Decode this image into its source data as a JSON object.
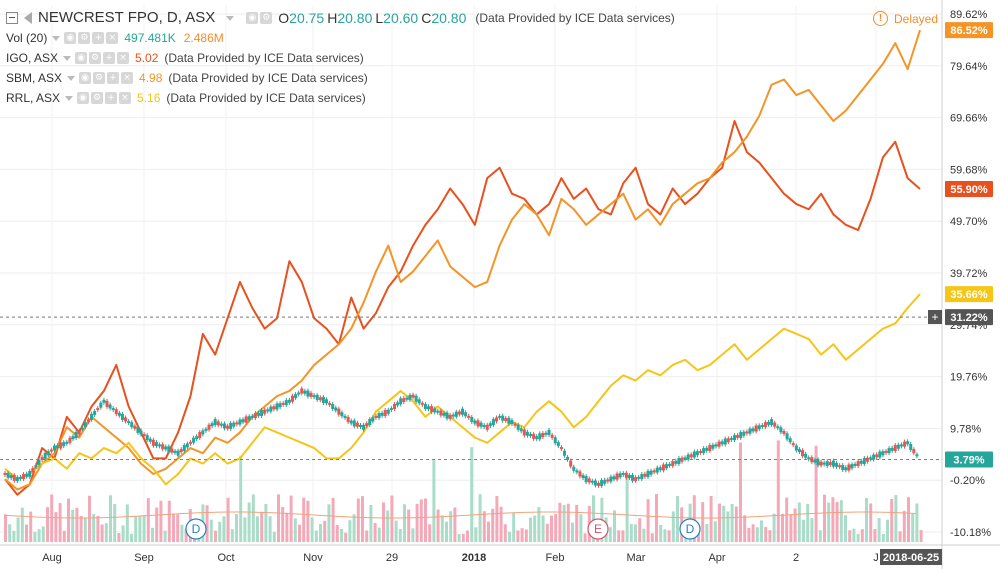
{
  "header": {
    "symbol": "NEWCREST FPO, D, ASX",
    "ohlc": [
      {
        "label": "O",
        "value": "20.75"
      },
      {
        "label": "H",
        "value": "20.80"
      },
      {
        "label": "L",
        "value": "20.60"
      },
      {
        "label": "C",
        "value": "20.80"
      }
    ],
    "provider": "(Data Provided by ICE Data services)",
    "delayed": "Delayed"
  },
  "volume_indicator": {
    "label": "Vol (20)",
    "value1": "497.481K",
    "value2": "2.486M",
    "color1": "#26a69a",
    "color2": "#f58c2c"
  },
  "comparisons": [
    {
      "name": "IGO, ASX",
      "value": "5.02",
      "color": "#e8501e",
      "provider": "(Data Provided by ICE Data services)"
    },
    {
      "name": "SBM, ASX",
      "value": "4.98",
      "color": "#f49426",
      "provider": "(Data Provided by ICE Data services)"
    },
    {
      "name": "RRL, ASX",
      "value": "5.16",
      "color": "#f5c518",
      "provider": "(Data Provided by ICE Data services)"
    }
  ],
  "axis": {
    "y_ticks": [
      "89.62%",
      "79.64%",
      "69.66%",
      "59.68%",
      "49.70%",
      "39.72%",
      "29.74%",
      "19.76%",
      "9.78%",
      "-0.20%",
      "-10.18%"
    ],
    "x_ticks": [
      "Aug",
      "Sep",
      "Oct",
      "Nov",
      "29",
      "2018",
      "Feb",
      "Mar",
      "Apr",
      "2",
      "J"
    ],
    "current_date": "2018-06-25"
  },
  "badges": [
    {
      "text": "86.52%",
      "color": "#f49426"
    },
    {
      "text": "55.90%",
      "color": "#e8501e"
    },
    {
      "text": "35.66%",
      "color": "#f5c518"
    },
    {
      "text": "31.22%",
      "color": "#555555"
    },
    {
      "text": "3.79%",
      "color": "#26a69a"
    }
  ],
  "markers": [
    {
      "letter": "D",
      "color": "#2a7fc4"
    },
    {
      "letter": "E",
      "color": "#d0556c"
    },
    {
      "letter": "D",
      "color": "#2a7fc4"
    }
  ],
  "chart_data": {
    "type": "line",
    "y_unit": "%",
    "ylim": [
      -10.18,
      89.62
    ],
    "grid": true,
    "series": [
      {
        "name": "IGO, ASX",
        "color": "#e8501e",
        "points": [
          [
            0,
            0
          ],
          [
            4,
            -3
          ],
          [
            8,
            -1
          ],
          [
            12,
            6
          ],
          [
            16,
            4
          ],
          [
            20,
            12
          ],
          [
            24,
            9
          ],
          [
            28,
            14
          ],
          [
            32,
            17
          ],
          [
            36,
            22
          ],
          [
            40,
            14
          ],
          [
            44,
            9
          ],
          [
            48,
            4
          ],
          [
            52,
            4
          ],
          [
            56,
            9
          ],
          [
            60,
            16
          ],
          [
            64,
            28
          ],
          [
            68,
            24
          ],
          [
            72,
            31
          ],
          [
            76,
            38
          ],
          [
            80,
            33
          ],
          [
            84,
            29
          ],
          [
            88,
            31
          ],
          [
            92,
            42
          ],
          [
            96,
            38
          ],
          [
            100,
            31
          ],
          [
            104,
            29
          ],
          [
            108,
            26
          ],
          [
            112,
            35
          ],
          [
            116,
            29
          ],
          [
            120,
            32
          ],
          [
            124,
            37
          ],
          [
            128,
            40
          ],
          [
            132,
            45
          ],
          [
            136,
            49
          ],
          [
            140,
            52
          ],
          [
            144,
            56
          ],
          [
            148,
            53
          ],
          [
            152,
            49
          ],
          [
            156,
            58
          ],
          [
            160,
            60
          ],
          [
            164,
            55
          ],
          [
            168,
            54
          ],
          [
            172,
            51
          ],
          [
            176,
            53
          ],
          [
            180,
            58
          ],
          [
            184,
            54
          ],
          [
            188,
            56
          ],
          [
            192,
            52
          ],
          [
            196,
            51
          ],
          [
            200,
            57
          ],
          [
            204,
            60
          ],
          [
            208,
            53
          ],
          [
            212,
            51
          ],
          [
            216,
            56
          ],
          [
            220,
            53
          ],
          [
            224,
            55
          ],
          [
            228,
            58
          ],
          [
            232,
            60
          ],
          [
            236,
            69
          ],
          [
            240,
            63
          ],
          [
            244,
            61
          ],
          [
            248,
            58
          ],
          [
            252,
            55
          ],
          [
            256,
            53
          ],
          [
            260,
            52
          ],
          [
            264,
            55
          ],
          [
            268,
            51
          ],
          [
            272,
            49
          ],
          [
            276,
            48
          ],
          [
            280,
            54
          ],
          [
            284,
            62
          ],
          [
            288,
            65
          ],
          [
            292,
            58
          ],
          [
            296,
            55.9
          ]
        ]
      },
      {
        "name": "SBM, ASX",
        "color": "#f49426",
        "points": [
          [
            0,
            0
          ],
          [
            4,
            -2
          ],
          [
            8,
            -1
          ],
          [
            12,
            3
          ],
          [
            16,
            5
          ],
          [
            20,
            10
          ],
          [
            24,
            8
          ],
          [
            28,
            12
          ],
          [
            32,
            10
          ],
          [
            36,
            8
          ],
          [
            40,
            6
          ],
          [
            44,
            3
          ],
          [
            48,
            1
          ],
          [
            52,
            2
          ],
          [
            56,
            4
          ],
          [
            60,
            6
          ],
          [
            64,
            5
          ],
          [
            68,
            8
          ],
          [
            72,
            7
          ],
          [
            76,
            9
          ],
          [
            80,
            12
          ],
          [
            84,
            14
          ],
          [
            88,
            16
          ],
          [
            92,
            17
          ],
          [
            96,
            19
          ],
          [
            100,
            22
          ],
          [
            104,
            24
          ],
          [
            108,
            26
          ],
          [
            112,
            29
          ],
          [
            116,
            34
          ],
          [
            120,
            40
          ],
          [
            124,
            45
          ],
          [
            128,
            38
          ],
          [
            132,
            40
          ],
          [
            136,
            43
          ],
          [
            140,
            46
          ],
          [
            144,
            41
          ],
          [
            148,
            39
          ],
          [
            152,
            37
          ],
          [
            156,
            38
          ],
          [
            160,
            45
          ],
          [
            164,
            50
          ],
          [
            168,
            53
          ],
          [
            172,
            51
          ],
          [
            176,
            47
          ],
          [
            180,
            54
          ],
          [
            184,
            52
          ],
          [
            188,
            49
          ],
          [
            192,
            51
          ],
          [
            196,
            53
          ],
          [
            200,
            55
          ],
          [
            204,
            50
          ],
          [
            208,
            52
          ],
          [
            212,
            49
          ],
          [
            216,
            53
          ],
          [
            220,
            55
          ],
          [
            224,
            57
          ],
          [
            228,
            58
          ],
          [
            232,
            61
          ],
          [
            236,
            63
          ],
          [
            240,
            66
          ],
          [
            244,
            70
          ],
          [
            248,
            76
          ],
          [
            252,
            77
          ],
          [
            256,
            74
          ],
          [
            260,
            75
          ],
          [
            264,
            72
          ],
          [
            268,
            69
          ],
          [
            272,
            71
          ],
          [
            276,
            74
          ],
          [
            280,
            77
          ],
          [
            284,
            80
          ],
          [
            288,
            84
          ],
          [
            292,
            79
          ],
          [
            296,
            86.52
          ]
        ]
      },
      {
        "name": "RRL, ASX",
        "color": "#f5c518",
        "points": [
          [
            0,
            2
          ],
          [
            4,
            0
          ],
          [
            8,
            1
          ],
          [
            12,
            3
          ],
          [
            16,
            4
          ],
          [
            20,
            2
          ],
          [
            24,
            5
          ],
          [
            28,
            4
          ],
          [
            32,
            6
          ],
          [
            36,
            5
          ],
          [
            40,
            7
          ],
          [
            44,
            4
          ],
          [
            48,
            2
          ],
          [
            52,
            -1
          ],
          [
            56,
            1
          ],
          [
            60,
            4
          ],
          [
            64,
            3
          ],
          [
            68,
            5
          ],
          [
            72,
            3
          ],
          [
            76,
            4
          ],
          [
            80,
            7
          ],
          [
            84,
            10
          ],
          [
            88,
            9
          ],
          [
            92,
            8
          ],
          [
            96,
            7
          ],
          [
            100,
            6
          ],
          [
            104,
            4
          ],
          [
            108,
            4
          ],
          [
            112,
            6
          ],
          [
            116,
            9
          ],
          [
            120,
            13
          ],
          [
            124,
            15
          ],
          [
            128,
            17
          ],
          [
            132,
            15
          ],
          [
            136,
            12
          ],
          [
            140,
            14
          ],
          [
            144,
            12
          ],
          [
            148,
            10
          ],
          [
            152,
            8
          ],
          [
            156,
            7
          ],
          [
            160,
            9
          ],
          [
            164,
            11
          ],
          [
            168,
            10
          ],
          [
            172,
            13
          ],
          [
            176,
            15
          ],
          [
            180,
            13
          ],
          [
            184,
            10
          ],
          [
            188,
            12
          ],
          [
            192,
            15
          ],
          [
            196,
            18
          ],
          [
            200,
            20
          ],
          [
            204,
            19
          ],
          [
            208,
            21
          ],
          [
            212,
            20
          ],
          [
            216,
            22
          ],
          [
            220,
            23
          ],
          [
            224,
            21
          ],
          [
            228,
            22
          ],
          [
            232,
            24
          ],
          [
            236,
            26
          ],
          [
            240,
            23
          ],
          [
            244,
            25
          ],
          [
            248,
            27
          ],
          [
            252,
            29
          ],
          [
            256,
            28
          ],
          [
            260,
            27
          ],
          [
            264,
            24
          ],
          [
            268,
            26
          ],
          [
            272,
            23
          ],
          [
            276,
            25
          ],
          [
            280,
            27
          ],
          [
            284,
            29
          ],
          [
            288,
            30
          ],
          [
            292,
            33
          ],
          [
            296,
            35.66
          ]
        ]
      },
      {
        "name": "NEWCREST FPO",
        "color": "#26a69a",
        "points": [
          [
            0,
            1
          ],
          [
            4,
            0
          ],
          [
            8,
            1
          ],
          [
            12,
            4
          ],
          [
            16,
            6
          ],
          [
            20,
            7
          ],
          [
            24,
            9
          ],
          [
            28,
            12
          ],
          [
            32,
            15
          ],
          [
            36,
            13
          ],
          [
            40,
            11
          ],
          [
            44,
            9
          ],
          [
            48,
            7
          ],
          [
            52,
            6
          ],
          [
            56,
            5
          ],
          [
            60,
            7
          ],
          [
            64,
            9
          ],
          [
            68,
            11
          ],
          [
            72,
            10
          ],
          [
            76,
            11
          ],
          [
            80,
            12
          ],
          [
            84,
            13
          ],
          [
            88,
            14
          ],
          [
            92,
            15
          ],
          [
            96,
            17
          ],
          [
            100,
            16
          ],
          [
            104,
            15
          ],
          [
            108,
            13
          ],
          [
            112,
            11
          ],
          [
            116,
            10
          ],
          [
            120,
            12
          ],
          [
            124,
            13
          ],
          [
            128,
            15
          ],
          [
            132,
            16
          ],
          [
            136,
            14
          ],
          [
            140,
            13
          ],
          [
            144,
            12
          ],
          [
            148,
            13
          ],
          [
            152,
            11
          ],
          [
            156,
            10
          ],
          [
            160,
            12
          ],
          [
            164,
            11
          ],
          [
            168,
            9
          ],
          [
            172,
            8
          ],
          [
            176,
            9
          ],
          [
            180,
            6
          ],
          [
            184,
            2
          ],
          [
            188,
            0
          ],
          [
            192,
            -1
          ],
          [
            196,
            0
          ],
          [
            200,
            1
          ],
          [
            204,
            0
          ],
          [
            208,
            1
          ],
          [
            212,
            2
          ],
          [
            216,
            3
          ],
          [
            220,
            4
          ],
          [
            224,
            5
          ],
          [
            228,
            6
          ],
          [
            232,
            7
          ],
          [
            236,
            8
          ],
          [
            240,
            9
          ],
          [
            244,
            10
          ],
          [
            248,
            11
          ],
          [
            252,
            9
          ],
          [
            256,
            6
          ],
          [
            260,
            4
          ],
          [
            264,
            3
          ],
          [
            268,
            3
          ],
          [
            272,
            2
          ],
          [
            276,
            3
          ],
          [
            280,
            4
          ],
          [
            284,
            5
          ],
          [
            288,
            6
          ],
          [
            292,
            7
          ],
          [
            296,
            3.79
          ]
        ]
      }
    ],
    "volume_scale": "bars at bottom"
  }
}
